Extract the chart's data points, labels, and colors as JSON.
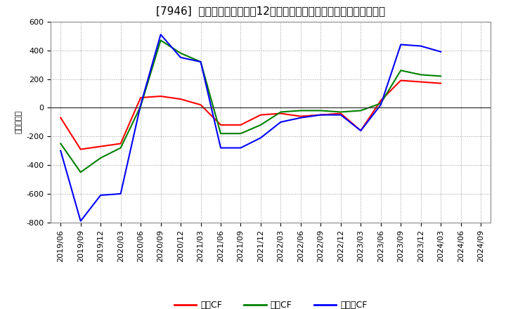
{
  "title": "[7946]  キャッシュフローの12か月移動合計の対前年同期増減額の推移",
  "ylabel": "（百万円）",
  "ylim": [
    -800,
    600
  ],
  "yticks": [
    -800,
    -600,
    -400,
    -200,
    0,
    200,
    400,
    600
  ],
  "x_labels": [
    "2019/06",
    "2019/09",
    "2019/12",
    "2020/03",
    "2020/06",
    "2020/09",
    "2020/12",
    "2021/03",
    "2021/06",
    "2021/09",
    "2021/12",
    "2022/03",
    "2022/06",
    "2022/09",
    "2022/12",
    "2023/03",
    "2023/06",
    "2023/09",
    "2023/12",
    "2024/03",
    "2024/06",
    "2024/09"
  ],
  "series": {
    "営業CF": {
      "color": "#ff0000",
      "values": [
        -70,
        -290,
        -270,
        -250,
        70,
        80,
        60,
        20,
        -120,
        -120,
        -50,
        -40,
        -60,
        -50,
        -40,
        -160,
        50,
        190,
        180,
        170,
        null,
        null
      ]
    },
    "投資CF": {
      "color": "#008000",
      "values": [
        -250,
        -450,
        -350,
        -280,
        10,
        470,
        380,
        320,
        -180,
        -180,
        -120,
        -30,
        -20,
        -20,
        -30,
        -20,
        30,
        260,
        230,
        220,
        null,
        null
      ]
    },
    "フリーCF": {
      "color": "#0000ff",
      "values": [
        -300,
        -790,
        -610,
        -600,
        20,
        510,
        350,
        320,
        -280,
        -280,
        -210,
        -100,
        -70,
        -50,
        -50,
        -160,
        20,
        440,
        430,
        390,
        null,
        null
      ]
    }
  },
  "legend_order": [
    "営業CF",
    "投資CF",
    "フリーCF"
  ],
  "legend_colors": [
    "#ff0000",
    "#008000",
    "#0000ff"
  ],
  "bg_color": "#ffffff",
  "plot_bg_color": "#ffffff",
  "grid_color": "#999999",
  "title_fontsize": 11,
  "axis_fontsize": 8,
  "legend_fontsize": 9
}
